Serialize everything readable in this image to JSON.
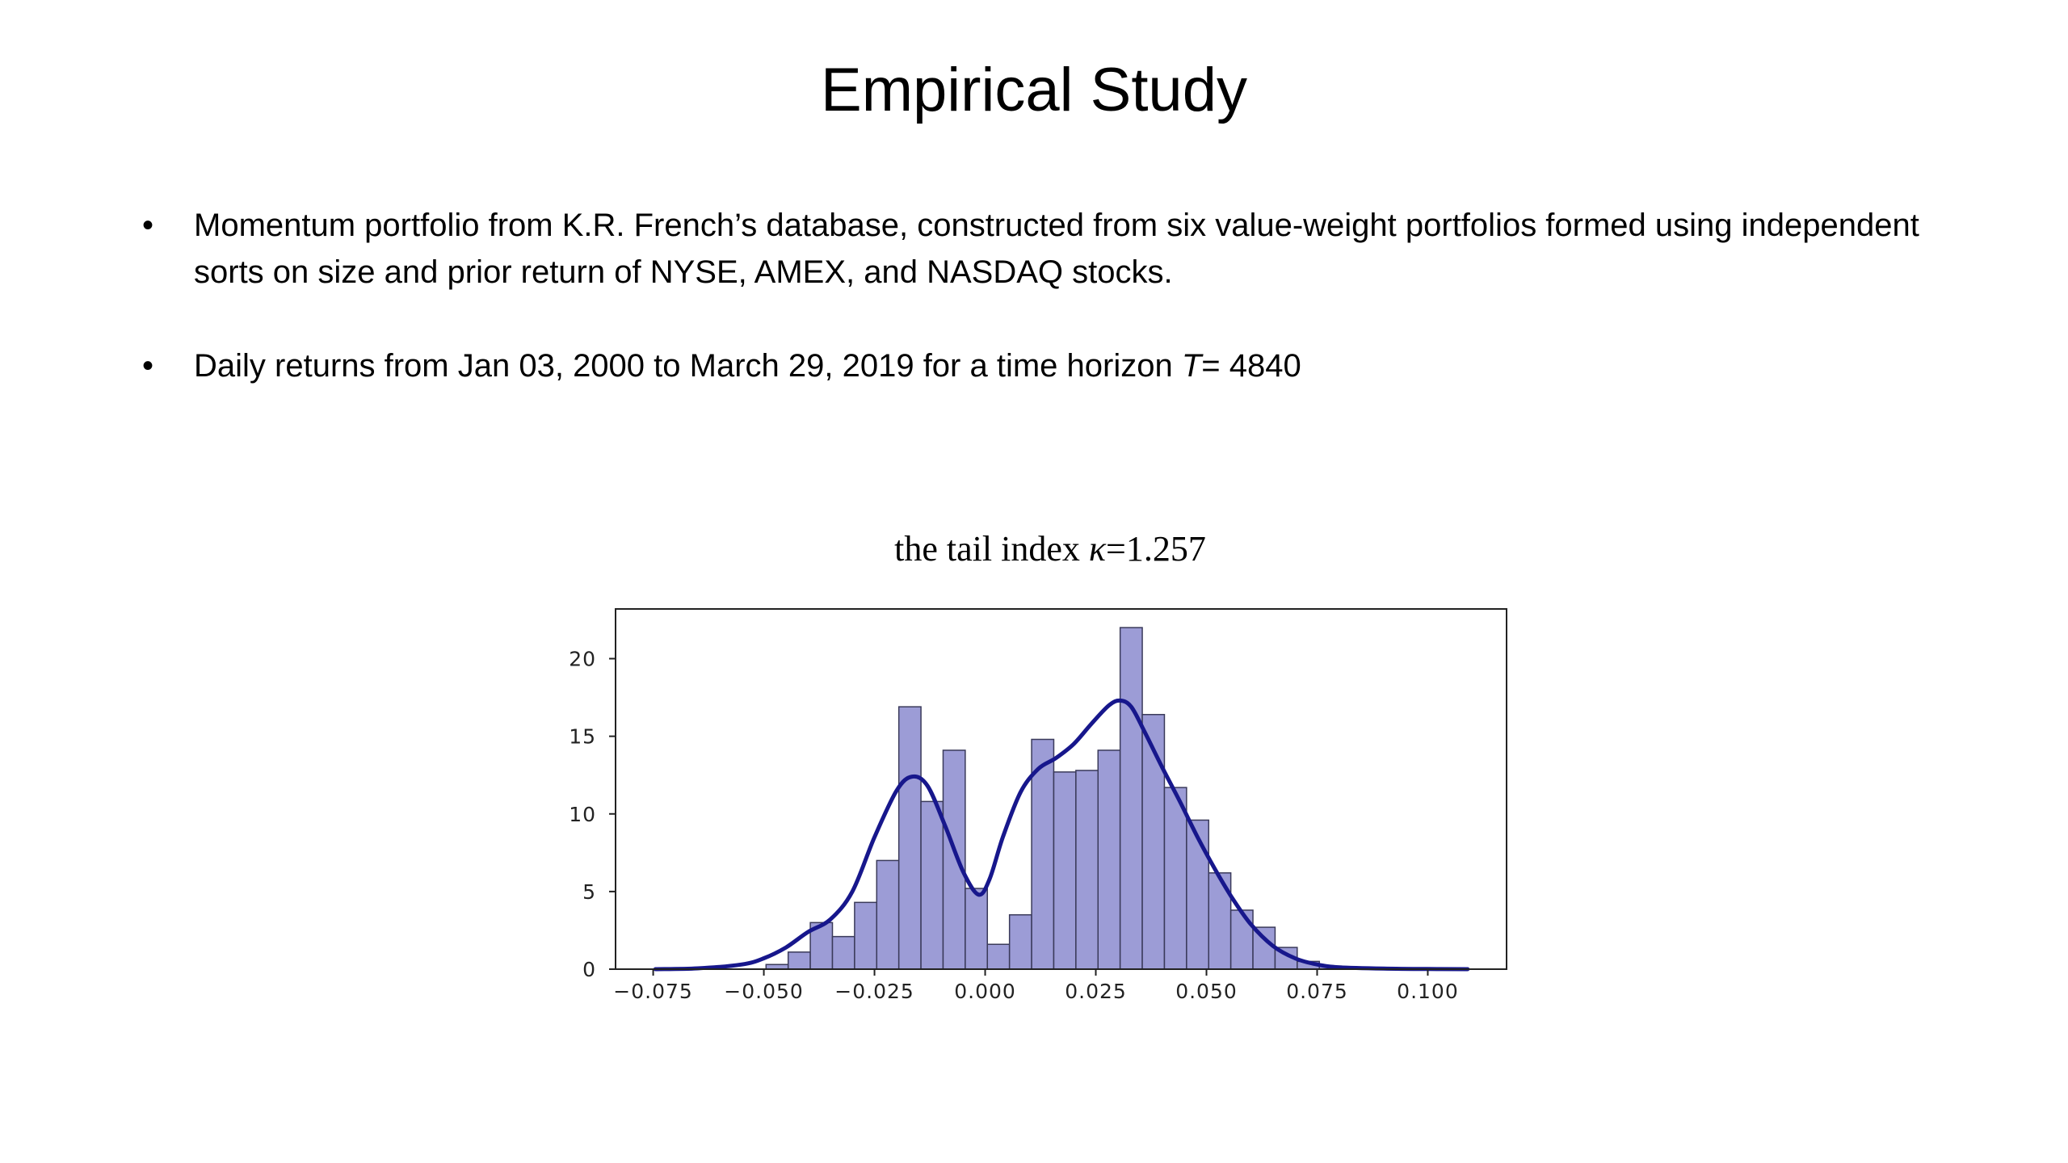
{
  "slide": {
    "title": "Empirical Study",
    "bullets": [
      {
        "text": "Momentum portfolio from K.R. French’s database, constructed from six value-weight portfolios formed using independent sorts on size and prior return of NYSE, AMEX, and NASDAQ stocks."
      },
      {
        "text_before": "Daily returns from Jan 03, 2000 to March 29, 2019 for a time horizon ",
        "italic": "T",
        "text_after": "= 4840"
      }
    ],
    "bullet_symbol": "•"
  },
  "chart_data": {
    "type": "bar",
    "title_before": "the tail index ",
    "title_symbol": "κ",
    "title_after": "=1.257",
    "xlabel": "",
    "ylabel": "",
    "xlim": [
      -0.0835,
      0.1178
    ],
    "ylim": [
      0,
      23.2
    ],
    "x_ticks": [
      -0.075,
      -0.05,
      -0.025,
      0.0,
      0.025,
      0.05,
      0.075,
      0.1
    ],
    "x_tick_labels": [
      "−0.075",
      "−0.050",
      "−0.025",
      "0.000",
      "0.025",
      "0.050",
      "0.075",
      "0.100"
    ],
    "y_ticks": [
      0,
      5,
      10,
      15,
      20
    ],
    "y_tick_labels": [
      "0",
      "5",
      "10",
      "15",
      "20"
    ],
    "bin_width": 0.005,
    "bin_start": -0.0495,
    "bar_values": [
      0.3,
      1.1,
      3.0,
      2.1,
      4.3,
      7.0,
      16.9,
      10.8,
      14.1,
      5.2,
      1.6,
      3.5,
      14.8,
      12.7,
      12.8,
      14.1,
      22.0,
      16.4,
      11.7,
      9.6,
      6.2,
      3.8,
      2.7,
      1.4,
      0.5,
      0.2
    ],
    "kde": {
      "x": [
        -0.0745,
        -0.065,
        -0.055,
        -0.05,
        -0.045,
        -0.04,
        -0.035,
        -0.03,
        -0.025,
        -0.02,
        -0.0165,
        -0.013,
        -0.009,
        -0.005,
        -0.0015,
        0.001,
        0.004,
        0.008,
        0.012,
        0.016,
        0.02,
        0.024,
        0.028,
        0.0305,
        0.033,
        0.036,
        0.04,
        0.044,
        0.048,
        0.052,
        0.056,
        0.06,
        0.065,
        0.07,
        0.075,
        0.08,
        0.09,
        0.1,
        0.109
      ],
      "y": [
        0,
        0.05,
        0.3,
        0.7,
        1.4,
        2.4,
        3.2,
        5.0,
        8.5,
        11.5,
        12.4,
        11.8,
        9.2,
        6.3,
        4.8,
        5.8,
        8.5,
        11.4,
        12.9,
        13.6,
        14.5,
        15.8,
        17.0,
        17.3,
        16.9,
        15.3,
        13.0,
        10.8,
        8.5,
        6.4,
        4.5,
        2.9,
        1.5,
        0.7,
        0.3,
        0.12,
        0.04,
        0.01,
        0.0
      ]
    },
    "colors": {
      "bar_fill": "#9c9cd6",
      "bar_edge": "#3a3a5a",
      "kde_line": "#17178c",
      "axes": "#222222"
    },
    "grid": false,
    "legend": "none"
  }
}
